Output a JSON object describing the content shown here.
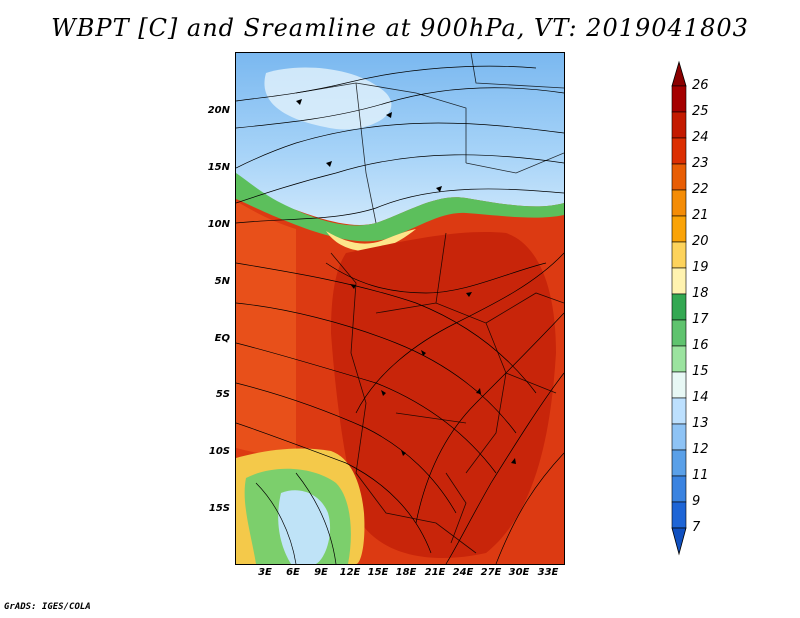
{
  "title": "WBPT [C] and Sreamline at 900hPa, VT: 2019041803",
  "credit": "GrADS: IGES/COLA",
  "map": {
    "lat_labels": [
      "20N",
      "15N",
      "10N",
      "5N",
      "EQ",
      "5S",
      "10S",
      "15S"
    ],
    "lon_labels": [
      "3E",
      "6E",
      "9E",
      "12E",
      "15E",
      "18E",
      "21E",
      "24E",
      "27E",
      "30E",
      "33E"
    ]
  },
  "colorbar": {
    "labels": [
      "26",
      "25",
      "24",
      "23",
      "22",
      "21",
      "20",
      "19",
      "18",
      "17",
      "16",
      "15",
      "14",
      "13",
      "12",
      "11",
      "9",
      "7"
    ],
    "colors": [
      "#a50000",
      "#c41a00",
      "#dc2f02",
      "#e85d04",
      "#f48c06",
      "#faa307",
      "#fdd35c",
      "#fff3b0",
      "#33a852",
      "#5fc36e",
      "#9be39f",
      "#e8f8f5",
      "#bde0fe",
      "#8ec3f5",
      "#5aa0e8",
      "#3a83e0",
      "#1e65d6"
    ],
    "top_arrow_color": "#8b0000",
    "bottom_arrow_color": "#1050c0"
  }
}
